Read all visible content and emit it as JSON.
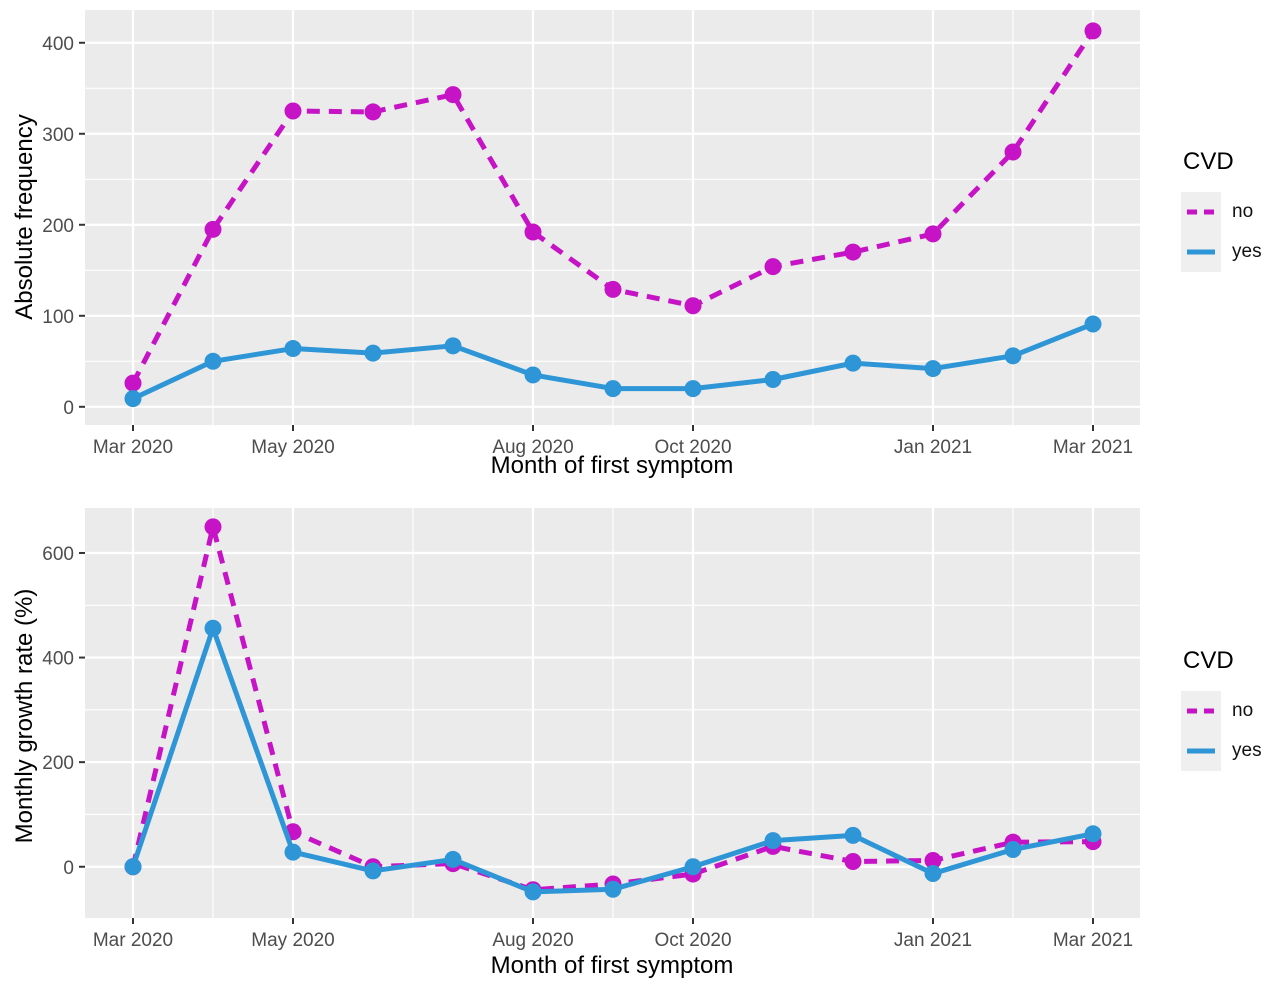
{
  "colors": {
    "no": "#C613C6",
    "yes": "#2E96D6",
    "panel_background": "#EBEBEB",
    "gridline": "#FFFFFF",
    "tick_mark": "#333333",
    "tick_label": "#4D4D4D",
    "axis_title": "#000000",
    "legend_key_background": "#EFEFEF"
  },
  "chart_data": [
    {
      "type": "line",
      "panel": "top",
      "title": "",
      "xlabel": "Month of first symptom",
      "ylabel": "Absolute frequency",
      "categories": [
        "Mar 2020",
        "Apr 2020",
        "May 2020",
        "Jun 2020",
        "Jul 2020",
        "Aug 2020",
        "Sep 2020",
        "Oct 2020",
        "Nov 2020",
        "Dec 2020",
        "Jan 2021",
        "Feb 2021",
        "Mar 2021"
      ],
      "x_tick_labels": [
        "Mar 2020",
        "May 2020",
        "Aug 2020",
        "Oct 2020",
        "Jan 2021",
        "Mar 2021"
      ],
      "x_tick_indices": [
        0,
        2,
        5,
        7,
        10,
        12
      ],
      "x_minor_indices": [
        1,
        3.5,
        6,
        8.5,
        11
      ],
      "yticks": [
        0,
        100,
        200,
        300,
        400
      ],
      "yticks_minor": [
        50,
        150,
        250,
        350
      ],
      "ylim": [
        -20,
        436
      ],
      "grid": true,
      "legend": {
        "title": "CVD",
        "position": "right",
        "entries": [
          {
            "label": "no",
            "color": "#C613C6",
            "style": "dashed"
          },
          {
            "label": "yes",
            "color": "#2E96D6",
            "style": "solid"
          }
        ]
      },
      "series": [
        {
          "name": "no",
          "color": "#C613C6",
          "linetype": "dashed",
          "values": [
            26,
            195,
            325,
            324,
            343,
            192,
            129,
            111,
            154,
            170,
            190,
            280,
            413
          ]
        },
        {
          "name": "yes",
          "color": "#2E96D6",
          "linetype": "solid",
          "values": [
            9,
            50,
            64,
            59,
            67,
            35,
            20,
            20,
            30,
            48,
            42,
            56,
            91
          ]
        }
      ]
    },
    {
      "type": "line",
      "panel": "bottom",
      "title": "",
      "xlabel": "Month of first symptom",
      "ylabel": "Monthly growth rate (%)",
      "categories": [
        "Mar 2020",
        "Apr 2020",
        "May 2020",
        "Jun 2020",
        "Jul 2020",
        "Aug 2020",
        "Sep 2020",
        "Oct 2020",
        "Nov 2020",
        "Dec 2020",
        "Jan 2021",
        "Feb 2021",
        "Mar 2021"
      ],
      "x_tick_labels": [
        "Mar 2020",
        "May 2020",
        "Aug 2020",
        "Oct 2020",
        "Jan 2021",
        "Mar 2021"
      ],
      "x_tick_indices": [
        0,
        2,
        5,
        7,
        10,
        12
      ],
      "x_minor_indices": [
        1,
        3.5,
        6,
        8.5,
        11
      ],
      "yticks": [
        0,
        200,
        400,
        600
      ],
      "yticks_minor": [
        100,
        300,
        500
      ],
      "ylim": [
        -98,
        686
      ],
      "grid": true,
      "legend": {
        "title": "CVD",
        "position": "right",
        "entries": [
          {
            "label": "no",
            "color": "#C613C6",
            "style": "dashed"
          },
          {
            "label": "yes",
            "color": "#2E96D6",
            "style": "solid"
          }
        ]
      },
      "series": [
        {
          "name": "no",
          "color": "#C613C6",
          "linetype": "dashed",
          "values": [
            0,
            650,
            67,
            0,
            6,
            -44,
            -33,
            -14,
            39,
            10,
            12,
            47,
            48
          ]
        },
        {
          "name": "yes",
          "color": "#2E96D6",
          "linetype": "solid",
          "values": [
            0,
            456,
            28,
            -8,
            14,
            -48,
            -43,
            0,
            50,
            60,
            -13,
            33,
            63
          ]
        }
      ]
    }
  ]
}
